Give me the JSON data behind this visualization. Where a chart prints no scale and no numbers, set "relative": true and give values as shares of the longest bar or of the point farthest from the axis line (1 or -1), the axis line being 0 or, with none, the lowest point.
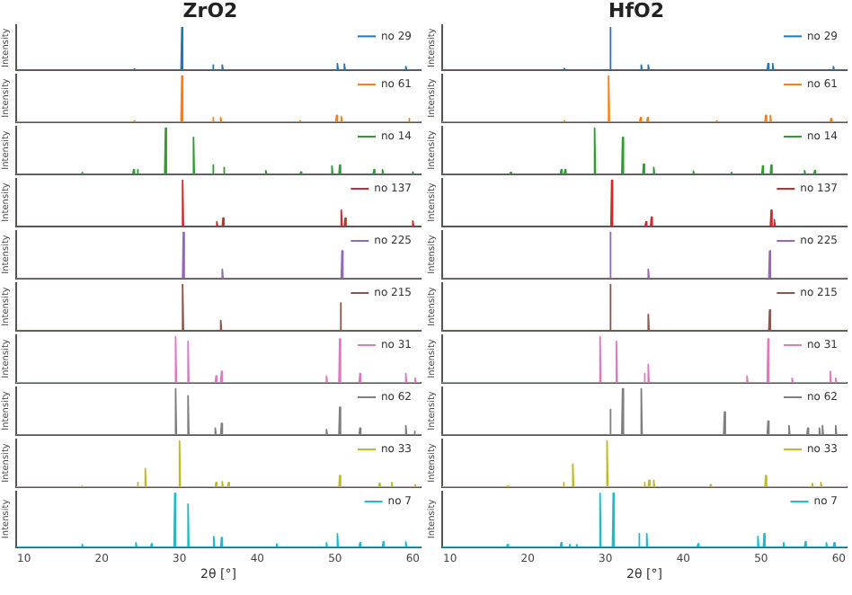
{
  "chart_data": [
    {
      "type": "line",
      "title": "ZrO2",
      "ylabel": "Intensity",
      "xlim": [
        9,
        61
      ],
      "xticks": [
        10,
        20,
        30,
        40,
        50,
        60
      ],
      "relative": true,
      "legend": "top right",
      "tick_labels": false,
      "series": [
        {
          "name": "no 29",
          "color": "#1f77b4",
          "x": [
            9,
            24.1,
            24.2,
            24.3,
            30.2,
            30.3,
            30.4,
            34.2,
            34.3,
            34.4,
            35.4,
            35.5,
            35.6,
            50.2,
            50.3,
            50.4,
            51.1,
            51.2,
            51.3,
            59,
            59.1,
            59.2,
            61
          ],
          "values": [
            0,
            0,
            0.03,
            0,
            0,
            1,
            0,
            0,
            0.12,
            0,
            0,
            0.12,
            0,
            0,
            0.15,
            0,
            0,
            0.14,
            0,
            0,
            0.08,
            0,
            0
          ]
        }
      ]
    },
    {
      "type": "line",
      "title": "HfO2",
      "ylabel": "Intensity",
      "xlim": [
        9,
        61
      ],
      "xticks": [
        10,
        20,
        30,
        40,
        50,
        60
      ],
      "relative": true,
      "legend": "top right",
      "tick_labels": false,
      "series": [
        {
          "name": "no 29",
          "color": "#1f77b4",
          "x": [
            9,
            24.6,
            24.7,
            24.8,
            30.5,
            30.6,
            30.7,
            34.5,
            34.6,
            34.7,
            35.4,
            35.5,
            35.6,
            50.8,
            50.9,
            51,
            51.4,
            51.5,
            51.6,
            59.2,
            59.3,
            59.4,
            61
          ],
          "values": [
            0,
            0,
            0.04,
            0,
            0,
            1,
            0,
            0,
            0.12,
            0,
            0,
            0.12,
            0,
            0,
            0.15,
            0,
            0,
            0.15,
            0,
            0,
            0.08,
            0,
            0
          ]
        }
      ]
    },
    {
      "type": "line",
      "ylabel": "Intensity",
      "xlim": [
        9,
        61
      ],
      "xticks": [
        10,
        20,
        30,
        40,
        50,
        60
      ],
      "relative": true,
      "legend": "top right",
      "tick_labels": false,
      "series": [
        {
          "name": "no 61",
          "color": "#ff7f0e",
          "x": [
            9,
            24.1,
            24.2,
            24.3,
            30.2,
            30.3,
            30.4,
            34.2,
            34.3,
            34.4,
            35.2,
            35.3,
            35.4,
            45.4,
            45.5,
            45.6,
            50.1,
            50.2,
            50.3,
            50.7,
            50.8,
            50.9,
            59.4,
            59.5,
            59.6,
            61
          ],
          "values": [
            0,
            0,
            0.03,
            0,
            0,
            1,
            0,
            0,
            0.1,
            0,
            0,
            0.1,
            0,
            0,
            0.03,
            0,
            0,
            0.15,
            0,
            0,
            0.12,
            0,
            0,
            0.08,
            0,
            0
          ]
        }
      ]
    },
    {
      "type": "line",
      "ylabel": "Intensity",
      "xlim": [
        9,
        61
      ],
      "xticks": [
        10,
        20,
        30,
        40,
        50,
        60
      ],
      "relative": true,
      "legend": "top right",
      "tick_labels": false,
      "series": [
        {
          "name": "no 61",
          "color": "#ff7f0e",
          "x": [
            9,
            24.6,
            24.7,
            24.8,
            30.3,
            30.4,
            30.5,
            34.4,
            34.5,
            34.6,
            35.3,
            35.4,
            35.5,
            44.2,
            44.3,
            44.4,
            50.5,
            50.6,
            50.7,
            51.1,
            51.2,
            51.3,
            58.9,
            59,
            59.1,
            61
          ],
          "values": [
            0,
            0,
            0.03,
            0,
            0,
            1,
            0,
            0,
            0.1,
            0,
            0,
            0.1,
            0,
            0,
            0.03,
            0,
            0,
            0.15,
            0,
            0,
            0.15,
            0,
            0,
            0.08,
            0,
            0
          ]
        }
      ]
    },
    {
      "type": "line",
      "ylabel": "Intensity",
      "xlim": [
        9,
        61
      ],
      "xticks": [
        10,
        20,
        30,
        40,
        50,
        60
      ],
      "relative": true,
      "legend": "top right",
      "tick_labels": false,
      "series": [
        {
          "name": "no 14",
          "color": "#2ca02c",
          "x": [
            9,
            17.4,
            17.5,
            17.6,
            24,
            24.1,
            24.2,
            24.5,
            24.6,
            24.7,
            28.1,
            28.2,
            28.3,
            31.7,
            31.8,
            31.9,
            34.2,
            34.3,
            34.4,
            35.6,
            35.7,
            35.8,
            41,
            41.1,
            41.2,
            45.5,
            45.6,
            45.7,
            49.5,
            49.6,
            49.7,
            50.5,
            50.6,
            50.7,
            54.9,
            55,
            55.1,
            56,
            56.1,
            56.2,
            59.9,
            60,
            60.1,
            61
          ],
          "values": [
            0,
            0,
            0.04,
            0,
            0,
            0.1,
            0,
            0,
            0.1,
            0,
            0,
            1,
            0,
            0,
            0.8,
            0,
            0,
            0.2,
            0,
            0,
            0.15,
            0,
            0,
            0.08,
            0,
            0,
            0.05,
            0,
            0,
            0.18,
            0,
            0,
            0.2,
            0,
            0,
            0.1,
            0,
            0,
            0.1,
            0,
            0,
            0.05,
            0,
            0
          ]
        }
      ]
    },
    {
      "type": "line",
      "ylabel": "Intensity",
      "xlim": [
        9,
        61
      ],
      "xticks": [
        10,
        20,
        30,
        40,
        50,
        60
      ],
      "relative": true,
      "legend": "top right",
      "tick_labels": false,
      "series": [
        {
          "name": "no 14",
          "color": "#2ca02c",
          "x": [
            9,
            17.7,
            17.8,
            17.9,
            24.2,
            24.3,
            24.4,
            24.7,
            24.8,
            24.9,
            28.5,
            28.6,
            28.7,
            32.1,
            32.2,
            32.3,
            34.8,
            34.9,
            35,
            36.1,
            36.2,
            36.3,
            41.2,
            41.3,
            41.4,
            46.1,
            46.2,
            46.3,
            50.1,
            50.2,
            50.3,
            51.2,
            51.3,
            51.4,
            55.5,
            55.6,
            55.7,
            56.8,
            56.9,
            57,
            61
          ],
          "values": [
            0,
            0,
            0.04,
            0,
            0,
            0.1,
            0,
            0,
            0.1,
            0,
            0,
            1,
            0,
            0,
            0.8,
            0,
            0,
            0.22,
            0,
            0,
            0.15,
            0,
            0,
            0.07,
            0,
            0,
            0.04,
            0,
            0,
            0.18,
            0,
            0,
            0.2,
            0,
            0,
            0.08,
            0,
            0,
            0.08,
            0,
            0
          ]
        }
      ]
    },
    {
      "type": "line",
      "ylabel": "Intensity",
      "xlim": [
        9,
        61
      ],
      "xticks": [
        10,
        20,
        30,
        40,
        50,
        60
      ],
      "relative": true,
      "legend": "top right",
      "tick_labels": false,
      "series": [
        {
          "name": "no 137",
          "color": "#d62728",
          "x": [
            9,
            30.3,
            30.4,
            30.5,
            34.7,
            34.8,
            34.9,
            35.5,
            35.6,
            35.7,
            50.7,
            50.8,
            50.9,
            51.2,
            51.3,
            51.4,
            59.9,
            60,
            60.1,
            61
          ],
          "values": [
            0,
            0,
            1,
            0,
            0,
            0.1,
            0,
            0,
            0.18,
            0,
            0,
            0.35,
            0,
            0,
            0.18,
            0,
            0,
            0.12,
            0,
            0
          ]
        }
      ]
    },
    {
      "type": "line",
      "ylabel": "Intensity",
      "xlim": [
        9,
        61
      ],
      "xticks": [
        10,
        20,
        30,
        40,
        50,
        60
      ],
      "relative": true,
      "legend": "top right",
      "tick_labels": false,
      "series": [
        {
          "name": "no 137",
          "color": "#d62728",
          "x": [
            9,
            30.7,
            30.8,
            30.9,
            35.1,
            35.2,
            35.3,
            35.8,
            35.9,
            36,
            51.2,
            51.3,
            51.4,
            51.6,
            51.7,
            51.8,
            61
          ],
          "values": [
            0,
            0,
            1,
            0,
            0,
            0.1,
            0,
            0,
            0.2,
            0,
            0,
            0.35,
            0,
            0,
            0.15,
            0,
            0
          ]
        }
      ]
    },
    {
      "type": "line",
      "ylabel": "Intensity",
      "xlim": [
        9,
        61
      ],
      "xticks": [
        10,
        20,
        30,
        40,
        50,
        60
      ],
      "relative": true,
      "legend": "top right",
      "tick_labels": false,
      "series": [
        {
          "name": "no 225",
          "color": "#9467bd",
          "x": [
            9,
            30.4,
            30.5,
            30.6,
            35.4,
            35.5,
            35.6,
            50.8,
            50.9,
            51,
            61
          ],
          "values": [
            0,
            0,
            1,
            0,
            0,
            0.2,
            0,
            0,
            0.6,
            0,
            0
          ]
        }
      ]
    },
    {
      "type": "line",
      "ylabel": "Intensity",
      "xlim": [
        9,
        61
      ],
      "xticks": [
        10,
        20,
        30,
        40,
        50,
        60
      ],
      "relative": true,
      "legend": "top right",
      "tick_labels": false,
      "series": [
        {
          "name": "no 225",
          "color": "#9467bd",
          "x": [
            9,
            30.5,
            30.6,
            30.7,
            35.4,
            35.5,
            35.6,
            51,
            51.1,
            51.2,
            61
          ],
          "values": [
            0,
            0,
            1,
            0,
            0,
            0.2,
            0,
            0,
            0.6,
            0,
            0
          ]
        }
      ]
    },
    {
      "type": "line",
      "ylabel": "Intensity",
      "xlim": [
        9,
        61
      ],
      "xticks": [
        10,
        20,
        30,
        40,
        50,
        60
      ],
      "relative": true,
      "legend": "top right",
      "tick_labels": false,
      "series": [
        {
          "name": "no 215",
          "color": "#8c564b",
          "x": [
            9,
            30.3,
            30.4,
            30.5,
            35.2,
            35.3,
            35.4,
            50.6,
            50.7,
            50.8,
            61
          ],
          "values": [
            0,
            0,
            1,
            0,
            0,
            0.22,
            0,
            0,
            0.6,
            0,
            0
          ]
        }
      ]
    },
    {
      "type": "line",
      "ylabel": "Intensity",
      "xlim": [
        9,
        61
      ],
      "xticks": [
        10,
        20,
        30,
        40,
        50,
        60
      ],
      "relative": true,
      "legend": "top right",
      "tick_labels": false,
      "series": [
        {
          "name": "no 215",
          "color": "#8c564b",
          "x": [
            9,
            30.5,
            30.6,
            30.7,
            35.4,
            35.5,
            35.6,
            51,
            51.1,
            51.2,
            61
          ],
          "values": [
            0,
            0,
            1,
            0,
            0,
            0.35,
            0,
            0,
            0.45,
            0,
            0
          ]
        }
      ]
    },
    {
      "type": "line",
      "ylabel": "Intensity",
      "xlim": [
        9,
        61
      ],
      "xticks": [
        10,
        20,
        30,
        40,
        50,
        60
      ],
      "relative": true,
      "legend": "top right",
      "tick_labels": false,
      "series": [
        {
          "name": "no 31",
          "color": "#e377c2",
          "x": [
            9,
            29.4,
            29.5,
            29.6,
            31,
            31.1,
            31.2,
            34.6,
            34.7,
            34.8,
            35.3,
            35.4,
            35.5,
            48.8,
            48.9,
            49,
            50.5,
            50.6,
            50.7,
            53.1,
            53.2,
            53.3,
            59,
            59.1,
            59.2,
            60.2,
            60.3,
            60.4,
            61
          ],
          "values": [
            0,
            0,
            1,
            0,
            0,
            0.9,
            0,
            0,
            0.15,
            0,
            0,
            0.25,
            0,
            0,
            0.15,
            0,
            0,
            0.95,
            0,
            0,
            0.2,
            0,
            0,
            0.2,
            0,
            0,
            0.1,
            0,
            0
          ]
        }
      ]
    },
    {
      "type": "line",
      "ylabel": "Intensity",
      "xlim": [
        9,
        61
      ],
      "xticks": [
        10,
        20,
        30,
        40,
        50,
        60
      ],
      "relative": true,
      "legend": "top right",
      "tick_labels": false,
      "series": [
        {
          "name": "no 31",
          "color": "#e377c2",
          "x": [
            9,
            29.2,
            29.3,
            29.4,
            31.3,
            31.4,
            31.5,
            34.9,
            35,
            35.1,
            35.4,
            35.5,
            35.6,
            48.1,
            48.2,
            48.3,
            50.8,
            50.9,
            51,
            53.9,
            54,
            54.1,
            58.8,
            58.9,
            59,
            59.5,
            59.6,
            59.7,
            61
          ],
          "values": [
            0,
            0,
            1,
            0,
            0,
            0.9,
            0,
            0,
            0.2,
            0,
            0,
            0.4,
            0,
            0,
            0.15,
            0,
            0,
            0.95,
            0,
            0,
            0.1,
            0,
            0,
            0.25,
            0,
            0,
            0.1,
            0,
            0
          ]
        }
      ]
    },
    {
      "type": "line",
      "ylabel": "Intensity",
      "xlim": [
        9,
        61
      ],
      "xticks": [
        10,
        20,
        30,
        40,
        50,
        60
      ],
      "relative": true,
      "legend": "top right",
      "tick_labels": false,
      "series": [
        {
          "name": "no 62",
          "color": "#7f7f7f",
          "x": [
            9,
            29.4,
            29.5,
            29.6,
            31,
            31.1,
            31.2,
            34.5,
            34.6,
            34.7,
            35.3,
            35.4,
            35.5,
            48.8,
            48.9,
            49,
            50.5,
            50.6,
            50.7,
            53.1,
            53.2,
            53.3,
            59,
            59.1,
            59.2,
            60.1,
            60.2,
            60.3,
            61
          ],
          "values": [
            0,
            0,
            1,
            0,
            0,
            0.85,
            0,
            0,
            0.15,
            0,
            0,
            0.25,
            0,
            0,
            0.12,
            0,
            0,
            0.6,
            0,
            0,
            0.15,
            0,
            0,
            0.2,
            0,
            0,
            0.08,
            0,
            0
          ]
        }
      ]
    },
    {
      "type": "line",
      "ylabel": "Intensity",
      "xlim": [
        9,
        61
      ],
      "xticks": [
        10,
        20,
        30,
        40,
        50,
        60
      ],
      "relative": true,
      "legend": "top right",
      "tick_labels": false,
      "series": [
        {
          "name": "no 62",
          "color": "#7f7f7f",
          "x": [
            9,
            30.5,
            30.6,
            30.7,
            32.1,
            32.2,
            32.3,
            34.5,
            34.6,
            34.7,
            45.2,
            45.3,
            45.4,
            50.8,
            50.9,
            51,
            53.5,
            53.6,
            53.7,
            55.9,
            56,
            56.1,
            57.4,
            57.5,
            57.6,
            57.8,
            57.9,
            58,
            59.5,
            59.6,
            59.7,
            61
          ],
          "values": [
            0,
            0,
            0.55,
            0,
            0,
            1,
            0,
            0,
            1,
            0,
            0,
            0.5,
            0,
            0,
            0.3,
            0,
            0,
            0.2,
            0,
            0,
            0.15,
            0,
            0,
            0.15,
            0,
            0,
            0.2,
            0,
            0,
            0.2,
            0,
            0
          ]
        }
      ]
    },
    {
      "type": "line",
      "ylabel": "Intensity",
      "xlim": [
        9,
        61
      ],
      "xticks": [
        10,
        20,
        30,
        40,
        50,
        60
      ],
      "relative": true,
      "legend": "top right",
      "tick_labels": false,
      "series": [
        {
          "name": "no 33",
          "color": "#bcbd22",
          "x": [
            9,
            17.4,
            17.5,
            17.6,
            24.5,
            24.6,
            24.7,
            25.5,
            25.6,
            25.7,
            29.9,
            30,
            30.1,
            34.6,
            34.7,
            34.8,
            35.4,
            35.5,
            35.6,
            36.2,
            36.3,
            36.4,
            50.5,
            50.6,
            50.7,
            55.6,
            55.7,
            55.8,
            57.2,
            57.3,
            57.4,
            60.2,
            60.3,
            60.4,
            61
          ],
          "values": [
            0,
            0,
            0.02,
            0,
            0,
            0.1,
            0,
            0,
            0.4,
            0,
            0,
            1,
            0,
            0,
            0.1,
            0,
            0,
            0.12,
            0,
            0,
            0.1,
            0,
            0,
            0.25,
            0,
            0,
            0.08,
            0,
            0,
            0.1,
            0,
            0,
            0.05,
            0,
            0
          ]
        }
      ]
    },
    {
      "type": "line",
      "ylabel": "Intensity",
      "xlim": [
        9,
        61
      ],
      "xticks": [
        10,
        20,
        30,
        40,
        50,
        60
      ],
      "relative": true,
      "legend": "top right",
      "tick_labels": false,
      "series": [
        {
          "name": "no 33",
          "color": "#bcbd22",
          "x": [
            9,
            17.3,
            17.4,
            17.5,
            24.5,
            24.6,
            24.7,
            25.7,
            25.8,
            25.9,
            30.1,
            30.2,
            30.3,
            34.9,
            35,
            35.1,
            35.5,
            35.6,
            35.7,
            36.1,
            36.2,
            36.3,
            43.4,
            43.5,
            43.6,
            50.5,
            50.6,
            50.7,
            56.5,
            56.6,
            56.7,
            57.6,
            57.7,
            57.8,
            61
          ],
          "values": [
            0,
            0,
            0.02,
            0,
            0,
            0.1,
            0,
            0,
            0.5,
            0,
            0,
            1,
            0,
            0,
            0.1,
            0,
            0,
            0.15,
            0,
            0,
            0.15,
            0,
            0,
            0.05,
            0,
            0,
            0.25,
            0,
            0,
            0.08,
            0,
            0,
            0.1,
            0,
            0
          ]
        }
      ]
    },
    {
      "type": "line",
      "ylabel": "Intensity",
      "xlabel": "2θ [°]",
      "xlim": [
        9,
        61
      ],
      "xticks": [
        10,
        20,
        30,
        40,
        50,
        60
      ],
      "relative": true,
      "legend": "top right",
      "tick_labels": "x",
      "series": [
        {
          "name": "no 7",
          "color": "#17becf",
          "x": [
            9,
            17.4,
            17.5,
            17.6,
            24.3,
            24.4,
            24.5,
            26.3,
            26.4,
            26.5,
            29.3,
            29.4,
            29.5,
            31,
            31.1,
            31.2,
            34.3,
            34.4,
            34.5,
            35.3,
            35.4,
            35.5,
            42.4,
            42.5,
            42.6,
            48.8,
            48.9,
            49,
            50.2,
            50.3,
            50.4,
            53.1,
            53.2,
            53.3,
            56.1,
            56.2,
            56.3,
            59,
            59.1,
            59.2,
            61
          ],
          "values": [
            0,
            0,
            0.05,
            0,
            0,
            0.08,
            0,
            0,
            0.06,
            0,
            0,
            1,
            0,
            0,
            0.8,
            0,
            0,
            0.2,
            0,
            0,
            0.18,
            0,
            0,
            0.06,
            0,
            0,
            0.08,
            0,
            0,
            0.25,
            0,
            0,
            0.08,
            0,
            0,
            0.1,
            0,
            0,
            0.1,
            0,
            0
          ]
        }
      ]
    },
    {
      "type": "line",
      "ylabel": "Intensity",
      "xlabel": "2θ [°]",
      "xlim": [
        9,
        61
      ],
      "xticks": [
        10,
        20,
        30,
        40,
        50,
        60
      ],
      "relative": true,
      "legend": "top right",
      "tick_labels": "x",
      "series": [
        {
          "name": "no 7",
          "color": "#17becf",
          "x": [
            9,
            17.3,
            17.4,
            17.5,
            24.2,
            24.3,
            24.4,
            25.3,
            25.4,
            25.5,
            26.2,
            26.3,
            26.4,
            29.2,
            29.3,
            29.4,
            30.9,
            31,
            31.1,
            34.2,
            34.3,
            34.4,
            35.2,
            35.3,
            35.4,
            41.8,
            41.9,
            42,
            49.5,
            49.6,
            49.7,
            50.3,
            50.4,
            50.5,
            52.8,
            52.9,
            53,
            55.6,
            55.7,
            55.8,
            58.3,
            58.4,
            58.5,
            59.3,
            59.4,
            59.5,
            61
          ],
          "values": [
            0,
            0,
            0.05,
            0,
            0,
            0.08,
            0,
            0,
            0.05,
            0,
            0,
            0.05,
            0,
            0,
            1,
            0,
            0,
            1,
            0,
            0,
            0.25,
            0,
            0,
            0.25,
            0,
            0,
            0.06,
            0,
            0,
            0.2,
            0,
            0,
            0.25,
            0,
            0,
            0.08,
            0,
            0,
            0.1,
            0,
            0,
            0.08,
            0,
            0,
            0.08,
            0,
            0
          ]
        }
      ]
    }
  ]
}
